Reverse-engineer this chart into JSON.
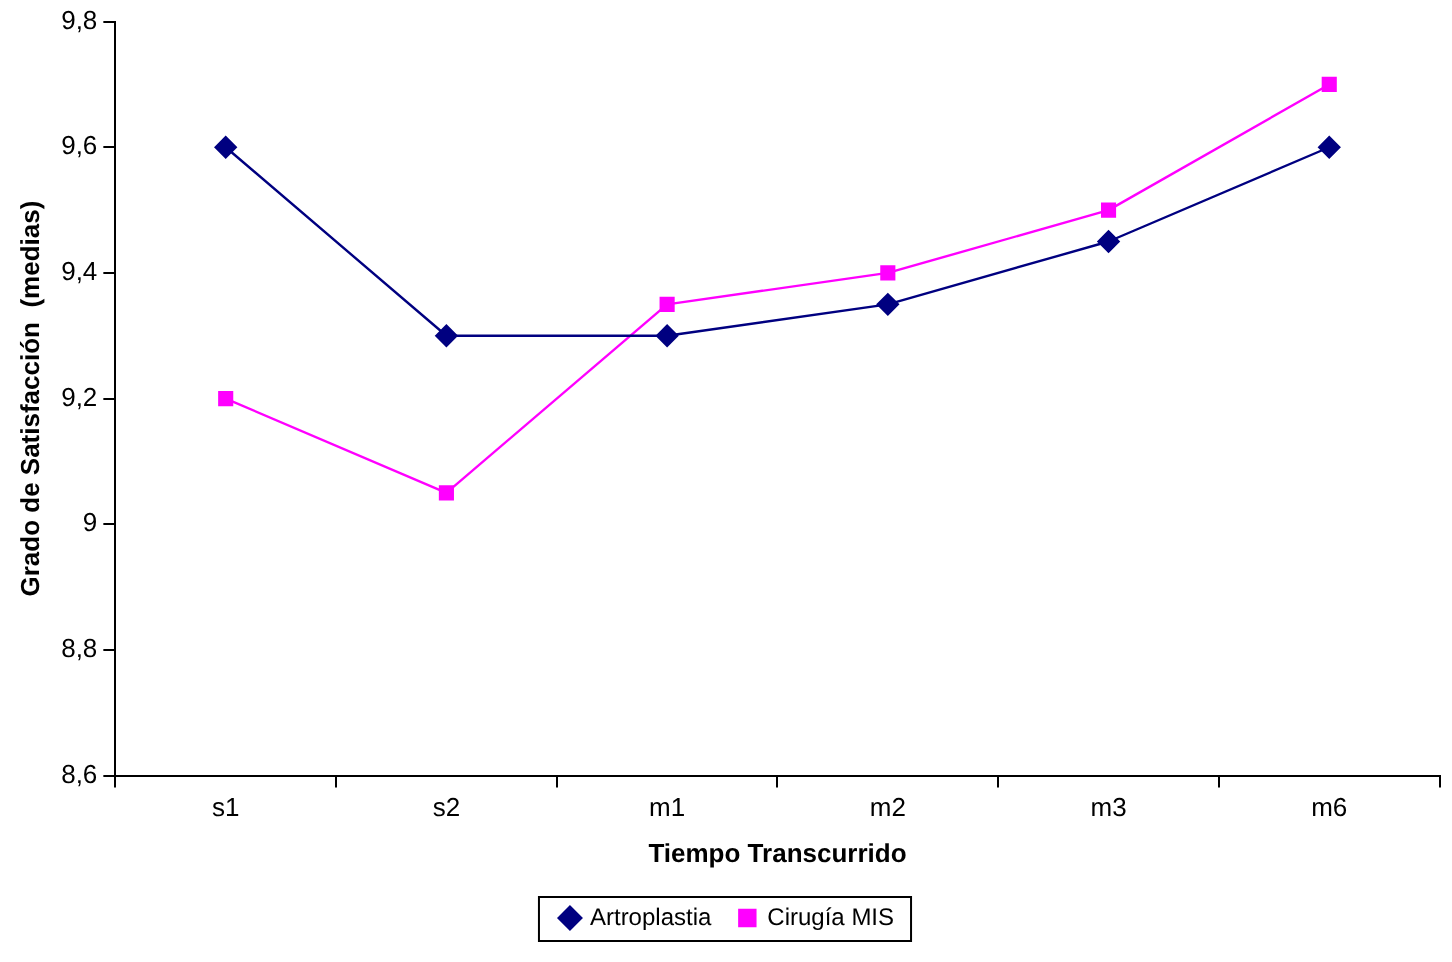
{
  "chart_data": {
    "type": "line",
    "xlabel": "Tiempo Transcurrido",
    "ylabel": "Grado de Satisfacción  (medias)",
    "categories": [
      "s1",
      "s2",
      "m1",
      "m2",
      "m3",
      "m6"
    ],
    "series": [
      {
        "name": "Artroplastia",
        "color": "#000080",
        "values": [
          9.6,
          9.3,
          9.3,
          9.35,
          9.45,
          9.6
        ],
        "marker": "diamond"
      },
      {
        "name": "Cirugía MIS",
        "color": "#ff00ff",
        "values": [
          9.2,
          9.05,
          9.35,
          9.4,
          9.5,
          9.7
        ],
        "marker": "square"
      }
    ],
    "ylim": [
      8.6,
      9.8
    ],
    "yticks": [
      {
        "value": 8.6,
        "label": "8,6"
      },
      {
        "value": 8.8,
        "label": "8,8"
      },
      9,
      {
        "value": 9.2,
        "label": "9,2"
      },
      {
        "value": 9.4,
        "label": "9,4"
      },
      {
        "value": 9.6,
        "label": "9,6"
      },
      {
        "value": 9.8,
        "label": "9,8"
      }
    ],
    "grid": false,
    "legend": "bottom",
    "line_style": "solid"
  }
}
